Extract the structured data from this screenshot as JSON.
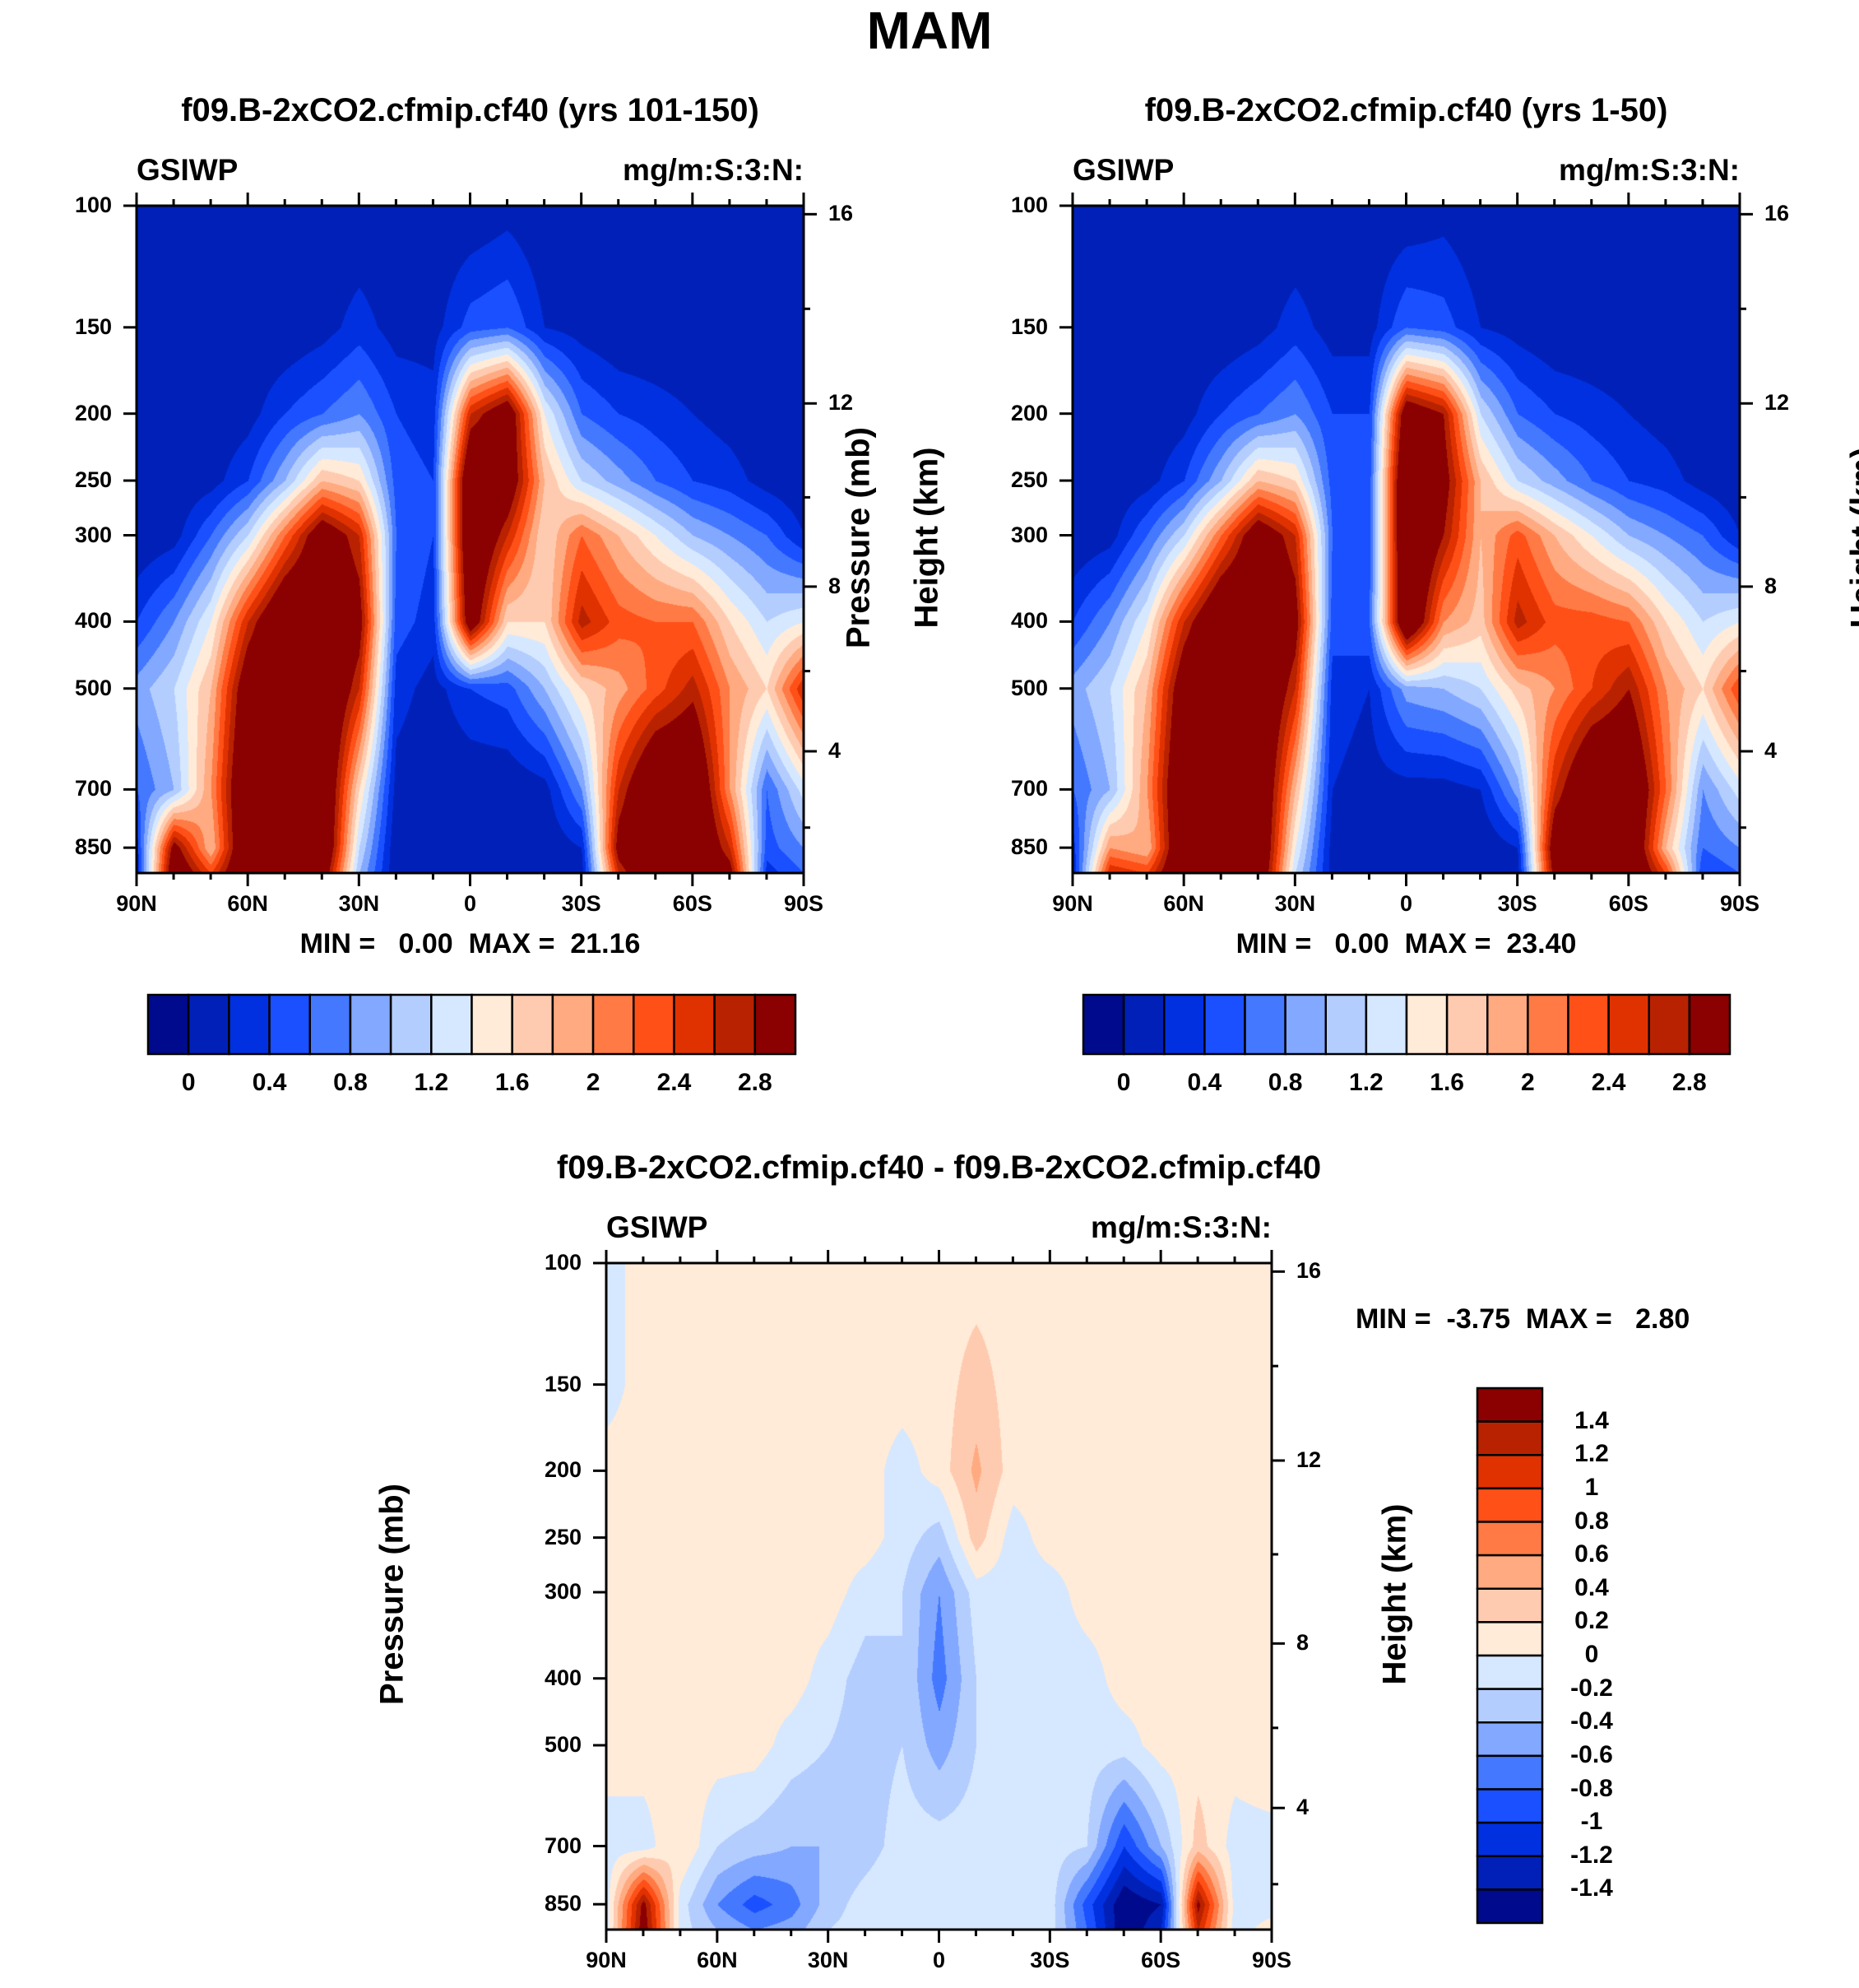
{
  "title": "MAM",
  "variable": "GSIWP",
  "units": "mg/m:S:3:N:",
  "colormap": [
    "#000a8c",
    "#0020b8",
    "#0030e0",
    "#1a50ff",
    "#4478ff",
    "#82a8ff",
    "#b4cdff",
    "#d6e8ff",
    "#ffebd8",
    "#ffcbb0",
    "#ffaa80",
    "#ff7a45",
    "#ff5018",
    "#e03200",
    "#b82200",
    "#8b0000"
  ],
  "chart_data": [
    {
      "type": "heatmap",
      "title": "f09.B-2xCO2.cfmip.cf40 (yrs 101-150)",
      "corner_left": "GSIWP",
      "corner_right": "mg/m:S:3:N:",
      "ylabel": "Pressure (mb)",
      "ylabel_right": "Height (km)",
      "min_label": "MIN =   0.00  MAX =  21.16",
      "lat": [
        90,
        80,
        70,
        60,
        50,
        40,
        30,
        20,
        10,
        0,
        -10,
        -20,
        -30,
        -40,
        -50,
        -60,
        -70,
        -80,
        -90
      ],
      "pressure": [
        100,
        150,
        200,
        250,
        300,
        400,
        500,
        700,
        850,
        925
      ],
      "values": [
        [
          0,
          0,
          0,
          0,
          0,
          0,
          0,
          0,
          0,
          0,
          0.1,
          0,
          0,
          0,
          0,
          0,
          0,
          0,
          0
        ],
        [
          0,
          0,
          0,
          0,
          0,
          0.1,
          0.3,
          0.1,
          0.1,
          0.5,
          0.6,
          0.2,
          0.1,
          0,
          0,
          0,
          0,
          0,
          0
        ],
        [
          0,
          0,
          0,
          0.1,
          0.4,
          0.6,
          0.8,
          0.4,
          0.3,
          2.6,
          3.2,
          1.4,
          0.6,
          0.4,
          0.3,
          0.2,
          0.1,
          0,
          0
        ],
        [
          0,
          0,
          0.1,
          0.4,
          1.0,
          1.8,
          1.6,
          0.5,
          0.4,
          3.5,
          3.2,
          1.8,
          1.2,
          0.9,
          0.6,
          0.4,
          0.3,
          0.1,
          0
        ],
        [
          0,
          0.1,
          0.6,
          1.2,
          2.2,
          3.2,
          2.6,
          0.6,
          0.4,
          3.5,
          2.6,
          1.6,
          2.2,
          1.8,
          1.4,
          1.0,
          0.8,
          0.6,
          0.2
        ],
        [
          0.4,
          0.8,
          1.4,
          2.6,
          3.5,
          3.5,
          3.0,
          0.5,
          0.3,
          3.2,
          1.6,
          1.6,
          2.7,
          2.3,
          2.2,
          2.2,
          1.6,
          1.2,
          1.4
        ],
        [
          0.9,
          1.2,
          1.8,
          3.2,
          3.5,
          3.5,
          2.6,
          0.3,
          0.1,
          0.4,
          0.5,
          1.0,
          1.6,
          1.9,
          2.3,
          2.7,
          2.0,
          1.6,
          2.6
        ],
        [
          0.6,
          1.0,
          2.0,
          3.5,
          3.5,
          3.5,
          1.6,
          0.1,
          0,
          0,
          0,
          0.1,
          0.8,
          2.6,
          3.5,
          3.5,
          2.0,
          0.6,
          1.3
        ],
        [
          0.3,
          3.0,
          1.8,
          3.5,
          3.5,
          3.5,
          1.2,
          0,
          0,
          0,
          0,
          0,
          0.2,
          3.0,
          3.5,
          3.5,
          2.6,
          0.5,
          0.8
        ],
        [
          0.2,
          3.3,
          2.4,
          3.5,
          3.5,
          3.2,
          1.0,
          0,
          0,
          0,
          0,
          0,
          0.1,
          2.6,
          3.5,
          3.5,
          3.0,
          0.3,
          0.6
        ]
      ],
      "levels": [
        0,
        0.2,
        0.4,
        0.6,
        0.8,
        1.0,
        1.2,
        1.4,
        1.6,
        1.8,
        2.0,
        2.2,
        2.4,
        2.6,
        2.8
      ],
      "colorbar_labels": [
        "0",
        "0.4",
        "0.8",
        "1.2",
        "1.6",
        "2",
        "2.4",
        "2.8"
      ]
    },
    {
      "type": "heatmap",
      "title": "f09.B-2xCO2.cfmip.cf40 (yrs 1-50)",
      "corner_left": "GSIWP",
      "corner_right": "mg/m:S:3:N:",
      "ylabel": "Pressure (mb)",
      "ylabel_right": "Height (km)",
      "min_label": "MIN =   0.00  MAX =  23.40",
      "lat": [
        90,
        80,
        70,
        60,
        50,
        40,
        30,
        20,
        10,
        0,
        -10,
        -20,
        -30,
        -40,
        -50,
        -60,
        -70,
        -80,
        -90
      ],
      "pressure": [
        100,
        150,
        200,
        250,
        300,
        400,
        500,
        700,
        850,
        925
      ],
      "values": [
        [
          0,
          0,
          0,
          0,
          0,
          0,
          0,
          0,
          0,
          0,
          0.1,
          0,
          0,
          0,
          0,
          0,
          0,
          0,
          0
        ],
        [
          0,
          0,
          0,
          0,
          0,
          0.1,
          0.3,
          0.1,
          0.1,
          0.6,
          0.5,
          0.2,
          0.1,
          0,
          0,
          0,
          0,
          0,
          0
        ],
        [
          0,
          0,
          0,
          0.1,
          0.4,
          0.6,
          0.8,
          0.4,
          0.4,
          3.2,
          2.8,
          1.2,
          0.6,
          0.4,
          0.3,
          0.2,
          0.1,
          0,
          0
        ],
        [
          0,
          0,
          0.1,
          0.4,
          1.0,
          1.8,
          1.6,
          0.5,
          0.5,
          3.6,
          3.0,
          1.8,
          1.2,
          0.9,
          0.6,
          0.4,
          0.3,
          0.1,
          0
        ],
        [
          0,
          0.1,
          0.6,
          1.2,
          2.2,
          3.2,
          2.6,
          0.6,
          0.5,
          3.6,
          2.8,
          1.8,
          2.3,
          1.8,
          1.4,
          1.0,
          0.8,
          0.6,
          0.2
        ],
        [
          0.4,
          0.8,
          1.4,
          2.6,
          3.5,
          3.5,
          3.0,
          0.5,
          0.6,
          3.5,
          2.0,
          1.7,
          2.7,
          2.3,
          2.3,
          2.2,
          1.6,
          1.2,
          1.4
        ],
        [
          0.9,
          1.2,
          1.8,
          3.2,
          3.5,
          3.5,
          2.6,
          0.3,
          0.2,
          0.9,
          1.0,
          1.2,
          1.7,
          2.0,
          2.4,
          2.8,
          2.0,
          1.6,
          2.4
        ],
        [
          0.6,
          1.0,
          2.0,
          3.5,
          3.5,
          3.5,
          1.8,
          0.2,
          0.1,
          0.1,
          0.1,
          0.2,
          0.9,
          2.6,
          3.5,
          3.5,
          2.2,
          0.8,
          1.3
        ],
        [
          0.3,
          2.0,
          1.8,
          3.5,
          3.5,
          3.5,
          1.4,
          0.1,
          0.1,
          0,
          0.1,
          0,
          0.2,
          3.2,
          3.5,
          3.5,
          1.8,
          0.6,
          0.8
        ],
        [
          0.2,
          2.6,
          2.4,
          3.5,
          3.5,
          3.4,
          1.2,
          0.1,
          0,
          0,
          0,
          0,
          0.1,
          3.0,
          3.5,
          3.5,
          2.4,
          0.4,
          0.6
        ]
      ],
      "levels": [
        0,
        0.2,
        0.4,
        0.6,
        0.8,
        1.0,
        1.2,
        1.4,
        1.6,
        1.8,
        2.0,
        2.2,
        2.4,
        2.6,
        2.8
      ],
      "colorbar_labels": [
        "0",
        "0.4",
        "0.8",
        "1.2",
        "1.6",
        "2",
        "2.4",
        "2.8"
      ]
    },
    {
      "type": "heatmap",
      "title": "f09.B-2xCO2.cfmip.cf40 - f09.B-2xCO2.cfmip.cf40",
      "corner_left": "GSIWP",
      "corner_right": "mg/m:S:3:N:",
      "ylabel": "Pressure (mb)",
      "ylabel_right": "Height (km)",
      "min_label": "MIN =  -3.75  MAX =   2.80",
      "lat": [
        90,
        80,
        70,
        60,
        50,
        40,
        30,
        20,
        10,
        0,
        -10,
        -20,
        -30,
        -40,
        -50,
        -60,
        -70,
        -80,
        -90
      ],
      "pressure": [
        100,
        150,
        200,
        250,
        300,
        400,
        500,
        700,
        850,
        925
      ],
      "values": [
        [
          -0.1,
          0.1,
          0.1,
          0.1,
          0.1,
          0.1,
          0.1,
          0.1,
          0.1,
          0.1,
          0.1,
          0.1,
          0.1,
          0.1,
          0.1,
          0.1,
          0.1,
          0.1,
          0.1
        ],
        [
          -0.1,
          0.1,
          0.1,
          0.1,
          0.1,
          0.1,
          0.1,
          0.1,
          0.1,
          0.1,
          0.3,
          0.1,
          0.1,
          0.1,
          0.1,
          0.1,
          0.1,
          0.1,
          0.1
        ],
        [
          0.1,
          0.1,
          0.1,
          0.1,
          0.1,
          0.1,
          0.1,
          0.1,
          -0.1,
          0.1,
          0.45,
          0.1,
          0.1,
          0.1,
          0.1,
          0.1,
          0.1,
          0.1,
          0.1
        ],
        [
          0.1,
          0.1,
          0.1,
          0.1,
          0.1,
          0.1,
          0.1,
          0.1,
          -0.1,
          -0.3,
          0.3,
          -0.1,
          0.1,
          0.1,
          0.1,
          0.1,
          0.1,
          0.1,
          0.1
        ],
        [
          0.1,
          0.1,
          0.1,
          0.1,
          0.1,
          0.1,
          0.1,
          -0.1,
          -0.2,
          -0.6,
          -0.1,
          -0.1,
          -0.1,
          0.1,
          0.1,
          0.1,
          0.1,
          0.1,
          0.1
        ],
        [
          0.1,
          0.1,
          0.1,
          0.1,
          0.1,
          0.1,
          -0.1,
          -0.3,
          -0.2,
          -0.7,
          -0.2,
          -0.1,
          -0.1,
          -0.1,
          0.1,
          0.1,
          0.1,
          0.1,
          0.1
        ],
        [
          0.1,
          0.1,
          0.1,
          0.1,
          0.1,
          -0.1,
          -0.2,
          -0.3,
          -0.2,
          -0.5,
          -0.2,
          -0.1,
          -0.1,
          -0.1,
          -0.1,
          0.1,
          0.1,
          0.1,
          0.2
        ],
        [
          -0.1,
          -0.1,
          0.2,
          -0.2,
          -0.3,
          -0.4,
          -0.4,
          -0.3,
          -0.1,
          -0.1,
          -0.1,
          -0.1,
          -0.1,
          -0.2,
          -1.0,
          -0.4,
          0.3,
          -0.1,
          -0.1
        ],
        [
          -0.1,
          1.5,
          -0.1,
          -0.6,
          -0.9,
          -0.7,
          -0.3,
          -0.1,
          0,
          -0.1,
          -0.1,
          -0.1,
          -0.1,
          -0.9,
          -1.6,
          -1.4,
          1.5,
          -0.1,
          -0.1
        ],
        [
          -0.1,
          1.6,
          -0.1,
          -0.4,
          -0.6,
          -0.5,
          -0.2,
          -0.1,
          0,
          -0.1,
          -0.1,
          -0.1,
          -0.1,
          -0.8,
          -1.6,
          -1.2,
          1.2,
          -0.1,
          0.1
        ]
      ],
      "levels": [
        -1.4,
        -1.2,
        -1.0,
        -0.8,
        -0.6,
        -0.4,
        -0.2,
        0,
        0.2,
        0.4,
        0.6,
        0.8,
        1.0,
        1.2,
        1.4
      ],
      "colorbar_labels": [
        "1.4",
        "1.2",
        "1",
        "0.8",
        "0.6",
        "0.4",
        "0.2",
        "0",
        "-0.2",
        "-0.4",
        "-0.6",
        "-0.8",
        "-1",
        "-1.2",
        "-1.4"
      ]
    }
  ],
  "axes": {
    "x_ticks": [
      90,
      60,
      30,
      0,
      -30,
      -60,
      -90
    ],
    "x_tick_labels": [
      "90N",
      "60N",
      "30N",
      "0",
      "30S",
      "60S",
      "90S"
    ],
    "x_minor": [
      80,
      70,
      50,
      40,
      20,
      10,
      -10,
      -20,
      -40,
      -50,
      -70,
      -80
    ],
    "p_ticks": [
      100,
      150,
      200,
      250,
      300,
      400,
      500,
      700,
      850
    ],
    "p_tick_labels": [
      "100",
      "150",
      "200",
      "250",
      "300",
      "400",
      "500",
      "700",
      "850"
    ],
    "p_range": [
      100,
      925
    ],
    "km_ticks": [
      16,
      12,
      8,
      4
    ],
    "km_tick_labels": [
      "16",
      "12",
      "8",
      "4"
    ],
    "km_minor": [
      14,
      10,
      6,
      2
    ]
  }
}
